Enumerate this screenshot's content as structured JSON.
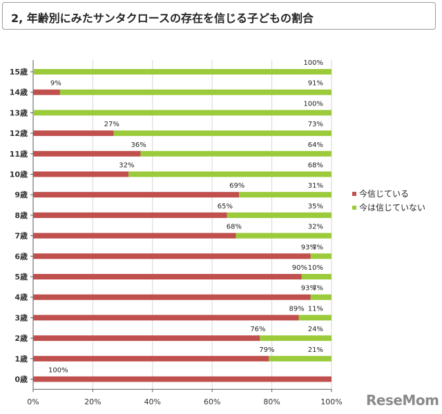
{
  "title": "2, 年齢別にみたサンタクロースの存在を信じる子どもの割合",
  "logo_text": "ReseMom",
  "colors": {
    "believe": "#c0504d",
    "not_believe": "#9bcb3b",
    "grid": "#d6d6d6",
    "axis": "#555555"
  },
  "chart_data": {
    "type": "bar",
    "orientation": "horizontal",
    "stacked": true,
    "categories": [
      "15歳",
      "14歳",
      "13歳",
      "12歳",
      "11歳",
      "10歳",
      "9歳",
      "8歳",
      "7歳",
      "6歳",
      "5歳",
      "4歳",
      "3歳",
      "2歳",
      "1歳",
      "0歳"
    ],
    "series": [
      {
        "name": "今信じている",
        "values": [
          0,
          9,
          0,
          27,
          36,
          32,
          69,
          65,
          68,
          93,
          90,
          93,
          89,
          76,
          79,
          100
        ]
      },
      {
        "name": "今は信じていない",
        "values": [
          100,
          91,
          100,
          73,
          64,
          68,
          31,
          35,
          32,
          7,
          10,
          7,
          11,
          24,
          21,
          0
        ]
      }
    ],
    "xlim": [
      0,
      100
    ],
    "xticks": [
      "0%",
      "20%",
      "40%",
      "60%",
      "80%",
      "100%"
    ],
    "legend_position": "right",
    "grid": true
  }
}
